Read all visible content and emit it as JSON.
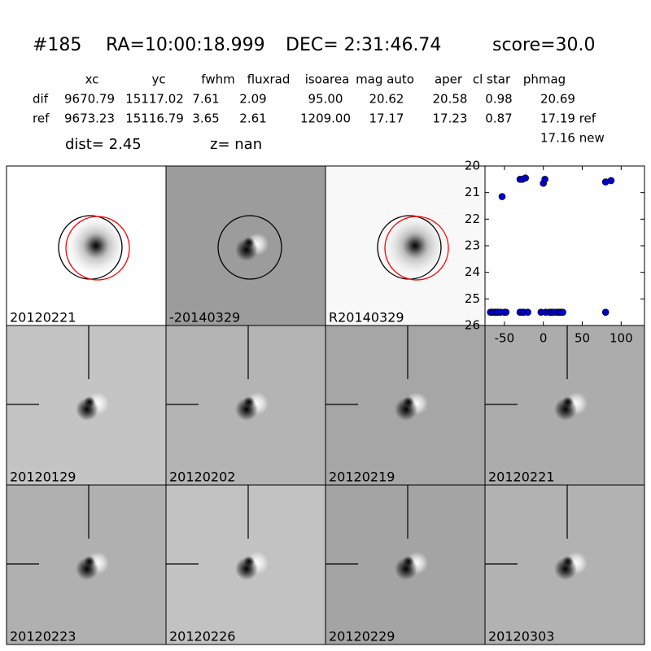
{
  "header": {
    "id": "#185",
    "ra": "RA=10:00:18.999",
    "dec": "DEC= 2:31:46.74",
    "score": "score=30.0",
    "dist": "dist=  2.45",
    "z": "z=   nan"
  },
  "table": {
    "columns": [
      "xc",
      "yc",
      "fwhm",
      "fluxrad",
      "isoarea",
      "mag auto",
      "aper",
      "cl star",
      "phmag"
    ],
    "rows": [
      [
        "dif",
        "9670.79",
        "15117.02",
        "7.61",
        "2.09",
        "95.00",
        "20.62",
        "20.58",
        "0.98",
        "20.69"
      ],
      [
        "ref",
        "9673.23",
        "15116.79",
        "3.65",
        "2.61",
        "1209.00",
        "17.17",
        "17.23",
        "0.87",
        "17.19 ref"
      ]
    ],
    "extra": "17.16 new"
  },
  "panels": [
    {
      "label": "20120221",
      "label_color": "#000000"
    },
    {
      "label": "-20140329",
      "label_color": "#000000"
    },
    {
      "label": "R20140329",
      "label_color": "#000000"
    },
    {
      "label": "20120129",
      "label_color": "#000000"
    },
    {
      "label": "20120202",
      "label_color": "#000000"
    },
    {
      "label": "20120219",
      "label_color": "#000000"
    },
    {
      "label": "20120221",
      "label_color": "#ff0000"
    },
    {
      "label": "20120223",
      "label_color": "#000000"
    },
    {
      "label": "20120226",
      "label_color": "#000000"
    },
    {
      "label": "20120229",
      "label_color": "#000000"
    },
    {
      "label": "20120303",
      "label_color": "#000000"
    }
  ],
  "chart_data": {
    "type": "scatter",
    "series": [
      {
        "color": "#0000cc",
        "x": [
          -68,
          -65,
          -62,
          -60,
          -58,
          -55,
          -50,
          -48,
          -30,
          -27,
          -25,
          -20,
          -3,
          3,
          8,
          10,
          13,
          17,
          20,
          22,
          25,
          80,
          -53,
          -30,
          -27,
          -23,
          0,
          2,
          80,
          87
        ],
        "values": [
          25.5,
          25.5,
          25.5,
          25.5,
          25.5,
          25.5,
          25.5,
          25.5,
          25.5,
          25.5,
          25.5,
          25.5,
          25.5,
          25.5,
          25.5,
          25.5,
          25.5,
          25.5,
          25.5,
          25.5,
          25.5,
          25.5,
          21.15,
          20.5,
          20.5,
          20.45,
          20.65,
          20.5,
          20.6,
          20.55
        ]
      }
    ],
    "xlim": [
      -75,
      130
    ],
    "ylim": [
      26,
      20
    ],
    "xticks": [
      -50,
      0,
      50,
      100
    ],
    "yticks": [
      20,
      21,
      22,
      23,
      24,
      25,
      26
    ]
  }
}
